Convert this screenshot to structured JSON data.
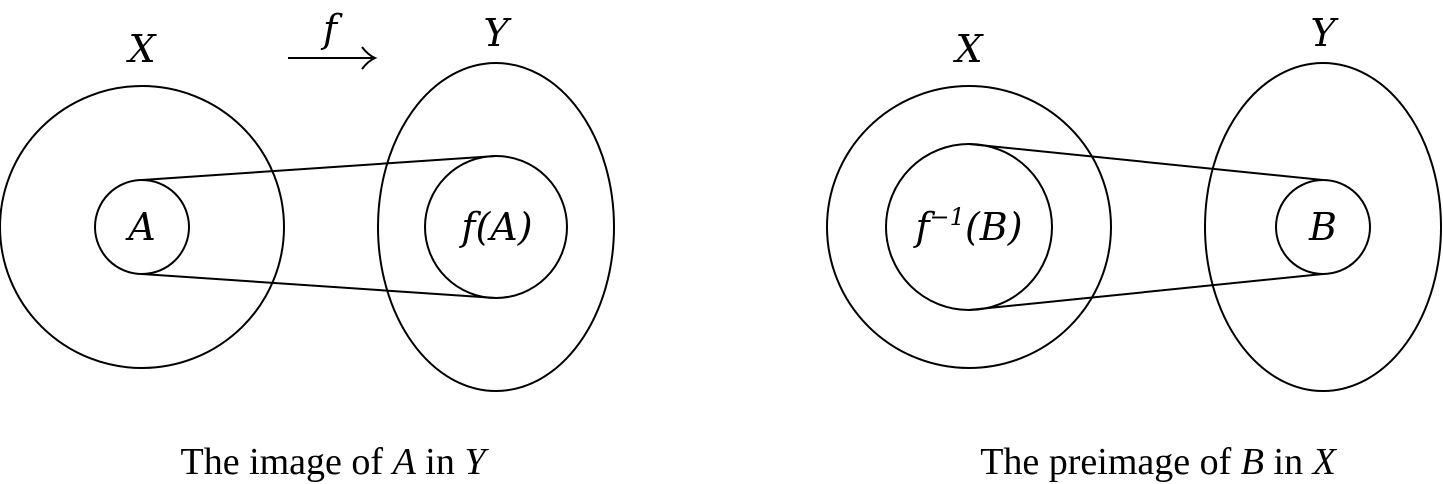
{
  "image_diagram": {
    "set_label_x": "X",
    "set_label_y": "Y",
    "arrow_label": "f",
    "subset_label": "A",
    "image_label": "f(A)",
    "caption": {
      "prefix": "The image of ",
      "subset": "A",
      "middle": " in ",
      "space": "Y"
    }
  },
  "preimage_diagram": {
    "set_label_x": "X",
    "set_label_y": "Y",
    "preimage_label": {
      "func": "f",
      "exponent": "−1",
      "argument": "(B)"
    },
    "subset_label": "B",
    "caption": {
      "prefix": "The preimage of ",
      "subset": "B",
      "middle": " in ",
      "space": "X"
    }
  }
}
